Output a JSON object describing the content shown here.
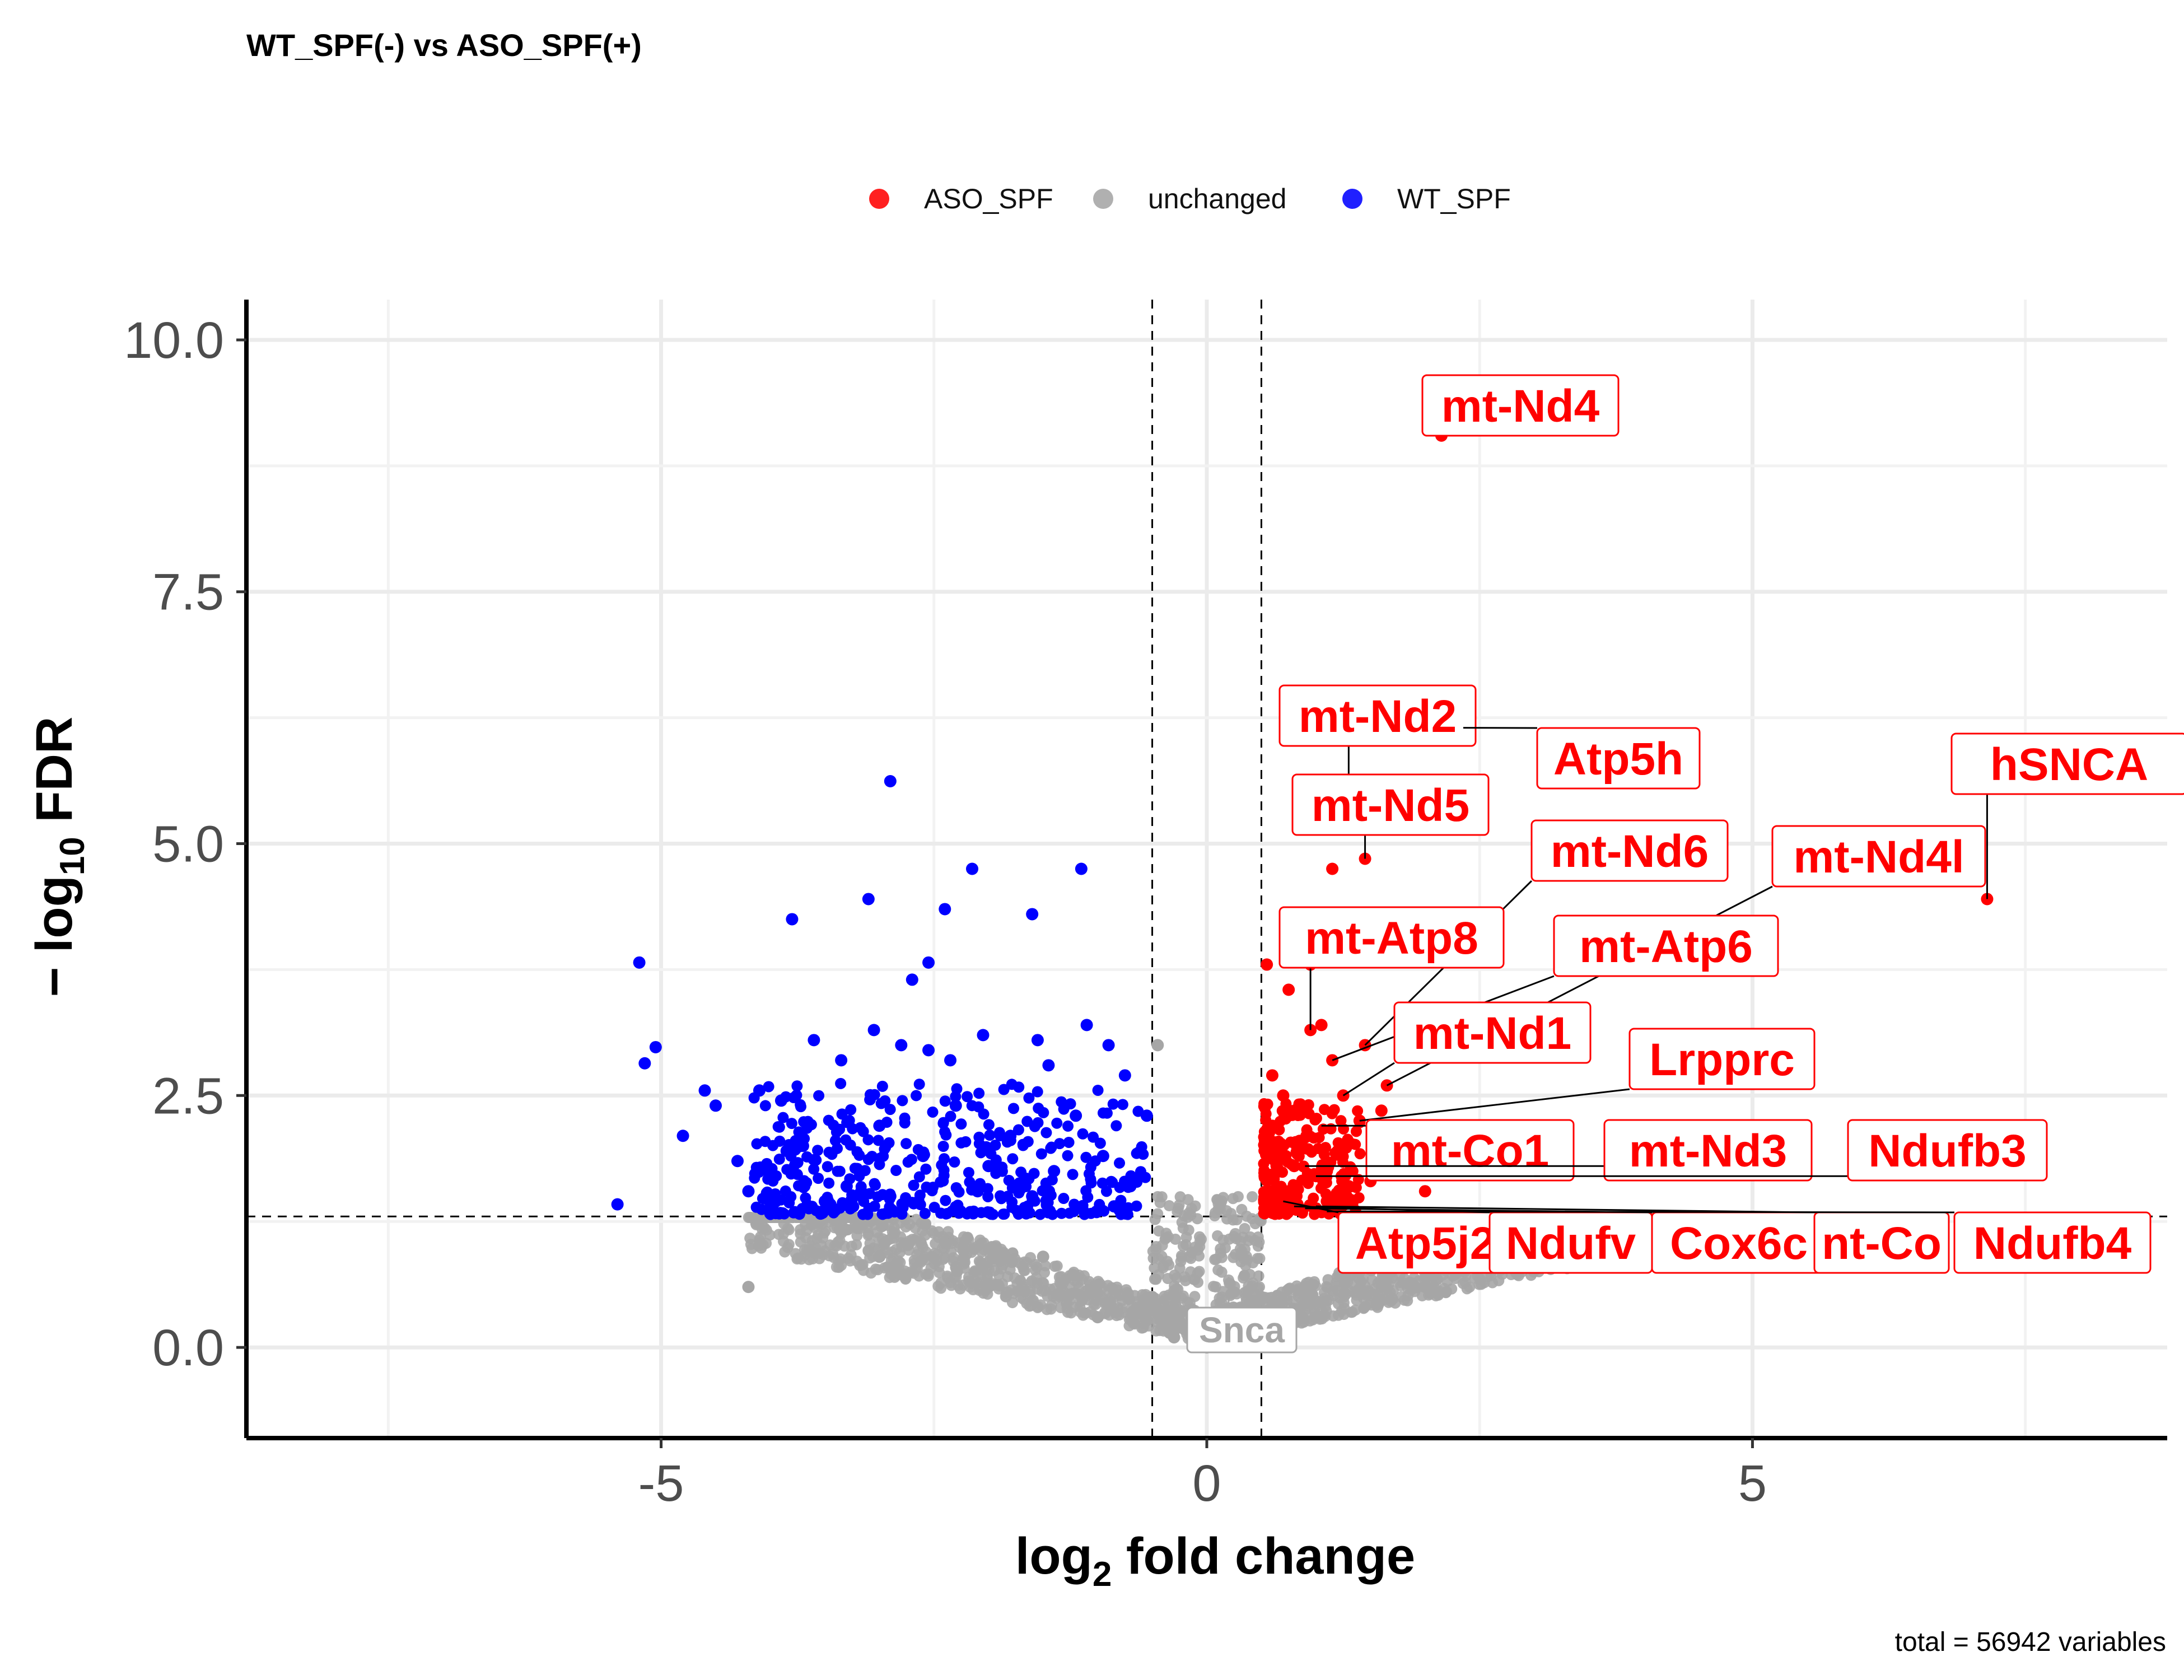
{
  "chart_data": {
    "type": "scatter",
    "title": "WT_SPF(-) vs ASO_SPF(+)",
    "caption": "total = 56942 variables",
    "xlim": [
      -8.8,
      8.8
    ],
    "ylim": [
      -0.9,
      10.4
    ],
    "x_ticks": [
      -5,
      0,
      5
    ],
    "y_ticks": [
      0.0,
      2.5,
      5.0,
      7.5,
      10.0
    ],
    "x_tick_labels": [
      "-5",
      "0",
      "5"
    ],
    "y_tick_labels": [
      "0.0",
      "2.5",
      "5.0",
      "7.5",
      "10.0"
    ],
    "xlabel": {
      "base": "log",
      "sub": "2",
      "rest": " fold change"
    },
    "ylabel": {
      "prefix": "− log",
      "sub": "10",
      "rest": " FDR"
    },
    "grid": true,
    "thresholds": {
      "fc_left": -0.5,
      "fc_right": 0.5,
      "fdr": 1.3
    },
    "legend": {
      "position": "top",
      "items": [
        {
          "name": "ASO_SPF",
          "color": "#ff2020"
        },
        {
          "name": "unchanged",
          "color": "#b0b0b0"
        },
        {
          "name": "WT_SPF",
          "color": "#2020ff"
        }
      ]
    },
    "colors": {
      "ASO_SPF": "#ff0000",
      "unchanged": "#a6a6a6",
      "WT_SPF": "#0000ff",
      "label": "#ff0000"
    },
    "series": [
      {
        "name": "WT_SPF",
        "points": [
          [
            -5.4,
            1.42
          ],
          [
            -5.2,
            3.82
          ],
          [
            -5.15,
            2.82
          ],
          [
            -5.05,
            2.98
          ],
          [
            -4.8,
            2.1
          ],
          [
            -4.6,
            2.55
          ],
          [
            -4.5,
            2.4
          ],
          [
            -4.3,
            1.85
          ],
          [
            -4.2,
            1.55
          ],
          [
            -4.1,
            2.55
          ],
          [
            -3.9,
            2.45
          ],
          [
            -3.85,
            1.95
          ],
          [
            -3.8,
            4.25
          ],
          [
            -3.6,
            3.05
          ],
          [
            -3.35,
            2.85
          ],
          [
            -3.1,
            4.45
          ],
          [
            -3.05,
            3.15
          ],
          [
            -2.9,
            5.62
          ],
          [
            -2.8,
            3.0
          ],
          [
            -2.7,
            3.65
          ],
          [
            -2.55,
            3.82
          ],
          [
            -2.55,
            2.95
          ],
          [
            -2.4,
            4.35
          ],
          [
            -2.35,
            2.85
          ],
          [
            -2.15,
            4.75
          ],
          [
            -2.05,
            3.1
          ],
          [
            -1.6,
            4.3
          ],
          [
            -1.55,
            3.05
          ],
          [
            -1.45,
            2.8
          ],
          [
            -1.15,
            4.75
          ],
          [
            -1.1,
            3.2
          ],
          [
            -0.9,
            3.0
          ],
          [
            -0.75,
            2.7
          ],
          [
            -0.55,
            2.3
          ],
          [
            -4.0,
            1.7
          ],
          [
            -3.7,
            2.0
          ],
          [
            -3.3,
            1.6
          ],
          [
            -3.0,
            2.2
          ],
          [
            -2.6,
            1.9
          ],
          [
            -2.3,
            2.4
          ],
          [
            -2.0,
            1.8
          ],
          [
            -1.8,
            2.1
          ],
          [
            -1.4,
            1.75
          ],
          [
            -1.2,
            2.3
          ],
          [
            -0.95,
            1.9
          ],
          [
            -0.7,
            1.6
          ],
          [
            -3.5,
            1.45
          ],
          [
            -2.9,
            1.5
          ],
          [
            -2.1,
            1.55
          ],
          [
            -1.6,
            1.5
          ],
          [
            -0.85,
            1.4
          ]
        ]
      },
      {
        "name": "ASO_SPF",
        "points": [
          [
            2.05,
            9.4
          ],
          [
            2.15,
            9.05
          ],
          [
            2.35,
            6.15
          ],
          [
            1.3,
            5.2
          ],
          [
            1.15,
            4.75
          ],
          [
            1.45,
            4.85
          ],
          [
            0.9,
            5.4
          ],
          [
            7.15,
            4.45
          ],
          [
            0.55,
            3.8
          ],
          [
            0.75,
            3.55
          ],
          [
            0.95,
            3.8
          ],
          [
            1.05,
            3.2
          ],
          [
            0.95,
            3.15
          ],
          [
            1.45,
            3.0
          ],
          [
            1.15,
            2.85
          ],
          [
            1.65,
            2.6
          ],
          [
            1.8,
            3.05
          ],
          [
            1.25,
            2.5
          ],
          [
            1.4,
            2.25
          ],
          [
            1.6,
            2.35
          ],
          [
            4.3,
            2.75
          ],
          [
            0.7,
            2.5
          ],
          [
            0.9,
            2.35
          ],
          [
            0.6,
            2.2
          ],
          [
            0.65,
            1.95
          ],
          [
            0.8,
            1.8
          ],
          [
            1.0,
            1.7
          ],
          [
            1.3,
            1.6
          ],
          [
            1.5,
            1.65
          ],
          [
            0.55,
            1.5
          ],
          [
            0.75,
            1.55
          ],
          [
            1.1,
            1.45
          ],
          [
            0.6,
            2.7
          ],
          [
            0.85,
            2.05
          ],
          [
            1.2,
            1.95
          ],
          [
            1.55,
            1.85
          ],
          [
            1.75,
            1.75
          ],
          [
            2.0,
            1.55
          ],
          [
            0.7,
            1.4
          ]
        ]
      },
      {
        "name": "unchanged",
        "points": [
          [
            -0.45,
            3.0
          ],
          [
            -4.2,
            0.6
          ],
          [
            3.0,
            0.8
          ],
          [
            0.0,
            0.0
          ],
          [
            -0.3,
            0.1
          ],
          [
            0.3,
            0.1
          ],
          [
            -1.0,
            0.3
          ],
          [
            1.0,
            0.3
          ],
          [
            -2.0,
            0.6
          ],
          [
            2.0,
            0.6
          ],
          [
            -3.0,
            0.9
          ],
          [
            2.5,
            0.8
          ],
          [
            -1.5,
            0.9
          ],
          [
            1.5,
            0.9
          ],
          [
            -0.5,
            0.5
          ],
          [
            0.5,
            0.5
          ]
        ]
      }
    ],
    "labels": [
      {
        "text": "mt-Nd4",
        "x": 2.05,
        "y": 9.4
      },
      {
        "text": "mt-Nd2",
        "x": 1.3,
        "y": 5.2
      },
      {
        "text": "Atp5h",
        "x": 2.35,
        "y": 6.15
      },
      {
        "text": "mt-Nd5",
        "x": 1.45,
        "y": 4.85
      },
      {
        "text": "hSNCA",
        "x": 7.15,
        "y": 4.45
      },
      {
        "text": "mt-Nd6",
        "x": 1.45,
        "y": 3.0
      },
      {
        "text": "mt-Nd4l",
        "x": 1.65,
        "y": 2.6
      },
      {
        "text": "mt-Atp8",
        "x": 0.95,
        "y": 3.15
      },
      {
        "text": "mt-Atp6",
        "x": 1.15,
        "y": 2.85
      },
      {
        "text": "mt-Nd1",
        "x": 1.25,
        "y": 2.5
      },
      {
        "text": "Lrpprc",
        "x": 1.4,
        "y": 2.25
      },
      {
        "text": "mt-Co1",
        "x": 1.05,
        "y": 2.2
      },
      {
        "text": "mt-Nd3",
        "x": 0.9,
        "y": 1.8
      },
      {
        "text": "Ndufb3",
        "x": 1.0,
        "y": 1.7
      },
      {
        "text": "Atp5j2",
        "x": 0.7,
        "y": 1.45
      },
      {
        "text": "Ndufv",
        "x": 0.8,
        "y": 1.4
      },
      {
        "text": "Cox6c",
        "x": 0.9,
        "y": 1.38
      },
      {
        "text": "nt-Co",
        "x": 1.0,
        "y": 1.4
      },
      {
        "text": "Ndufb4",
        "x": 1.1,
        "y": 1.35
      },
      {
        "text": "Snca",
        "x": 0.2,
        "y": 0.7
      }
    ]
  }
}
